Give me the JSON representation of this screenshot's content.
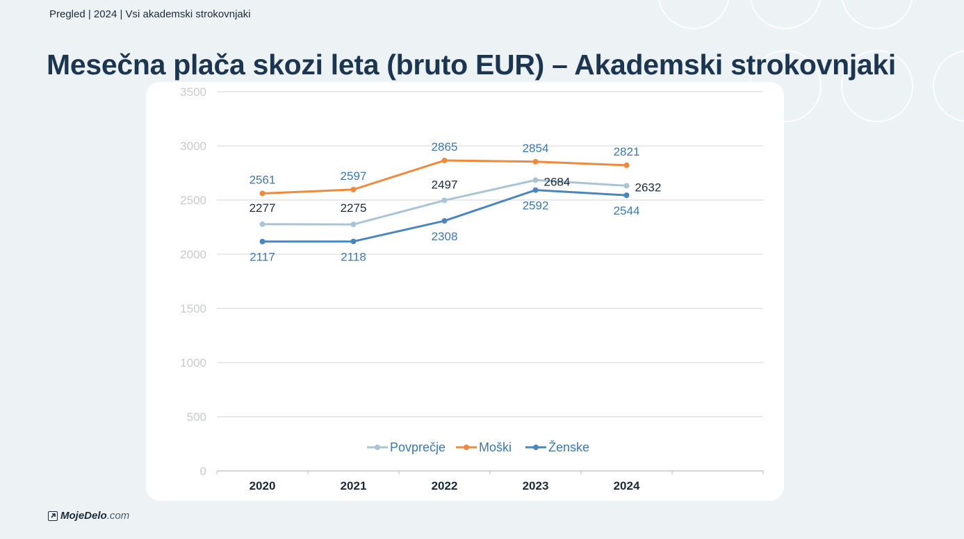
{
  "header": {
    "breadcrumb": "Pregled | 2024 | Vsi akademski strokovnjaki",
    "title": "Mesečna plača skozi leta (bruto EUR) – Akademski strokovnjaki"
  },
  "footer": {
    "logo_main": "MojeDelo",
    "logo_tld": ".com"
  },
  "colors": {
    "background": "#edf2f5",
    "title": "#1c3550",
    "povprecje": "#a9c4d6",
    "moski": "#ef8a3d",
    "zenske": "#4a86bd"
  },
  "chart_data": {
    "type": "line",
    "categories": [
      "2020",
      "2021",
      "2022",
      "2023",
      "2024"
    ],
    "ylim": [
      0,
      3500
    ],
    "yticks": [
      0,
      500,
      1000,
      1500,
      2000,
      2500,
      3000,
      3500
    ],
    "grid": true,
    "legend": "bottom-center",
    "series": [
      {
        "name": "Povprečje",
        "color": "#a9c4d6",
        "label_color": "#1b2a38",
        "values": [
          2277,
          2275,
          2497,
          2684,
          2632
        ]
      },
      {
        "name": "Moški",
        "color": "#ef8a3d",
        "label_color": "#3d78ad",
        "values": [
          2561,
          2597,
          2865,
          2854,
          2821
        ]
      },
      {
        "name": "Ženske",
        "color": "#4a86bd",
        "label_color": "#3d78ad",
        "values": [
          2117,
          2118,
          2308,
          2592,
          2544
        ]
      }
    ]
  }
}
